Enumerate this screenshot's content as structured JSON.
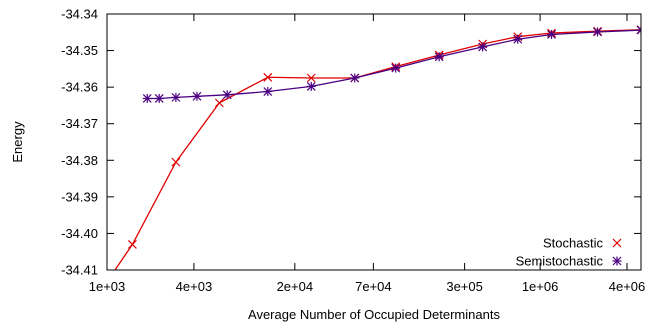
{
  "chart_data": {
    "type": "line",
    "title": "",
    "xlabel": "Average Number of Occupied Determinants",
    "ylabel": "Energy",
    "x_scale": "log",
    "x_range": [
      1000,
      5000000
    ],
    "y_range": [
      -34.41,
      -34.34
    ],
    "grid": false,
    "legend_position": "bottom-right",
    "x_ticks": [
      {
        "value": 1000,
        "label": "1e+03"
      },
      {
        "value": 4000,
        "label": "4e+03"
      },
      {
        "value": 20000,
        "label": "2e+04"
      },
      {
        "value": 70000,
        "label": "7e+04"
      },
      {
        "value": 300000,
        "label": "3e+05"
      },
      {
        "value": 1000000,
        "label": "1e+06"
      },
      {
        "value": 4000000,
        "label": "4e+06"
      }
    ],
    "y_ticks": [
      {
        "value": -34.34,
        "label": "-34.34"
      },
      {
        "value": -34.35,
        "label": "-34.35"
      },
      {
        "value": -34.36,
        "label": "-34.36"
      },
      {
        "value": -34.37,
        "label": "-34.37"
      },
      {
        "value": -34.38,
        "label": "-34.38"
      },
      {
        "value": -34.39,
        "label": "-34.39"
      },
      {
        "value": -34.4,
        "label": "-34.40"
      },
      {
        "value": -34.41,
        "label": "-34.41"
      }
    ],
    "series": [
      {
        "name": "Stochastic",
        "color": "#e00000",
        "marker": "x",
        "points": [
          {
            "x": 1050,
            "y": -34.412
          },
          {
            "x": 1500,
            "y": -34.403
          },
          {
            "x": 3000,
            "y": -34.3805
          },
          {
            "x": 6000,
            "y": -34.3643
          },
          {
            "x": 13000,
            "y": -34.3573
          },
          {
            "x": 26000,
            "y": -34.3575
          },
          {
            "x": 52000,
            "y": -34.3575
          },
          {
            "x": 100000,
            "y": -34.3544
          },
          {
            "x": 200000,
            "y": -34.3512
          },
          {
            "x": 400000,
            "y": -34.3482
          },
          {
            "x": 700000,
            "y": -34.3462
          },
          {
            "x": 1200000,
            "y": -34.3452
          },
          {
            "x": 2500000,
            "y": -34.3447
          },
          {
            "x": 5000000,
            "y": -34.3443
          }
        ]
      },
      {
        "name": "Semistochastic",
        "color": "#4b0082",
        "marker": "asterisk",
        "points": [
          {
            "x": 1900,
            "y": -34.3631
          },
          {
            "x": 2300,
            "y": -34.3631
          },
          {
            "x": 3000,
            "y": -34.3628
          },
          {
            "x": 4200,
            "y": -34.3625
          },
          {
            "x": 6800,
            "y": -34.3621
          },
          {
            "x": 13000,
            "y": -34.3612
          },
          {
            "x": 26000,
            "y": -34.3598
          },
          {
            "x": 52000,
            "y": -34.3575
          },
          {
            "x": 100000,
            "y": -34.3548
          },
          {
            "x": 200000,
            "y": -34.3517
          },
          {
            "x": 400000,
            "y": -34.349
          },
          {
            "x": 700000,
            "y": -34.3469
          },
          {
            "x": 1200000,
            "y": -34.3456
          },
          {
            "x": 2500000,
            "y": -34.3449
          },
          {
            "x": 5000000,
            "y": -34.3444
          }
        ]
      }
    ]
  }
}
